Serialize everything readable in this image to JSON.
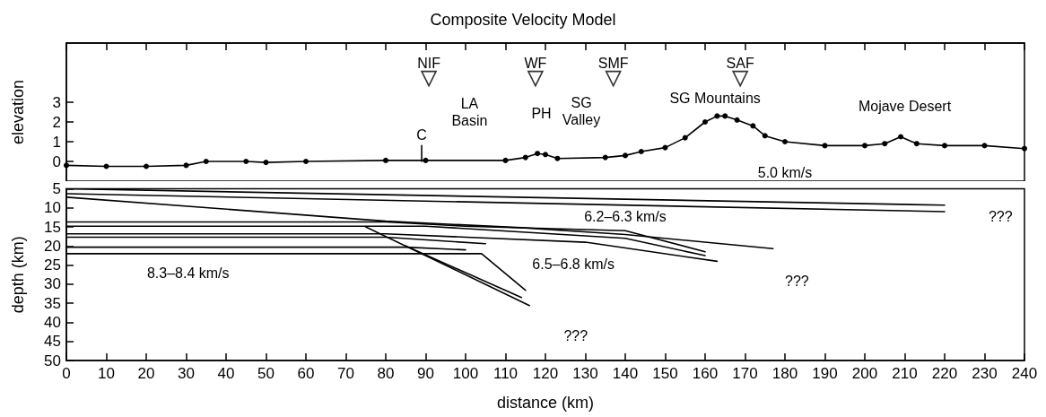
{
  "chart_data": [
    {
      "type": "line",
      "title": "Composite Velocity Model",
      "ylabel": "elevation",
      "xlim": [
        0,
        240
      ],
      "xticks": [
        0,
        10,
        20,
        30,
        40,
        50,
        60,
        70,
        80,
        90,
        100,
        110,
        120,
        130,
        140,
        150,
        160,
        170,
        180,
        190,
        200,
        210,
        220,
        230,
        240
      ],
      "ylim": [
        -1,
        6
      ],
      "yticks": [
        0,
        1,
        2,
        3
      ],
      "tick_labels": "y",
      "marker": "circle",
      "series": [
        {
          "color": "#000000",
          "x": [
            0,
            10,
            20,
            30,
            35,
            45,
            50,
            60,
            80,
            90,
            110,
            115,
            118,
            120,
            123,
            135,
            140,
            144,
            150,
            155,
            160,
            163,
            165,
            168,
            172,
            175,
            180,
            190,
            200,
            205,
            209,
            213,
            220,
            230,
            240
          ],
          "values": [
            -0.2,
            -0.25,
            -0.25,
            -0.2,
            0,
            0,
            -0.05,
            0,
            0.05,
            0.05,
            0.05,
            0.2,
            0.4,
            0.35,
            0.15,
            0.2,
            0.3,
            0.5,
            0.7,
            1.2,
            2.0,
            2.3,
            2.3,
            2.1,
            1.8,
            1.3,
            1.0,
            0.8,
            0.8,
            0.9,
            1.25,
            0.9,
            0.8,
            0.8,
            0.65
          ]
        },
        {
          "color": "#000000",
          "marker": "none",
          "x": [
            89,
            89
          ],
          "values": [
            0,
            0.8
          ]
        },
        {
          "type": "scatter",
          "color": "#000000",
          "marker": "triangle",
          "x": [
            90.8,
            117.5,
            137,
            168.8
          ],
          "values": [
            4.2,
            4.2,
            4.2,
            4.2
          ]
        }
      ],
      "annotations": [
        "NIF",
        "WF",
        "SMF",
        "SAF",
        "C",
        "LA\nBasin",
        "PH",
        "SG\nValley",
        "SG Mountains",
        "Mojave Desert",
        "5.0 km/s"
      ]
    },
    {
      "type": "line",
      "xlabel": "distance (km)",
      "ylabel": "depth (km)",
      "xlim": [
        0,
        240
      ],
      "xticks": [
        0,
        10,
        20,
        30,
        40,
        50,
        60,
        70,
        80,
        90,
        100,
        110,
        120,
        130,
        140,
        150,
        160,
        170,
        180,
        190,
        200,
        210,
        220,
        230,
        240
      ],
      "ylim": [
        50,
        5
      ],
      "yticks": [
        5,
        10,
        15,
        20,
        25,
        30,
        35,
        40,
        45,
        50
      ],
      "marker": "none",
      "series": [
        {
          "color": "#000000",
          "x": [
            0,
            220
          ],
          "values": [
            5.0,
            9.3
          ]
        },
        {
          "color": "#000000",
          "x": [
            0,
            220
          ],
          "values": [
            6.3,
            11.0
          ]
        },
        {
          "color": "#000000",
          "x": [
            0,
            80,
            114,
            140,
            177
          ],
          "values": [
            7.2,
            13.5,
            15.2,
            17,
            20.7
          ]
        },
        {
          "color": "#000000",
          "x": [
            0,
            80,
            100,
            140,
            160
          ],
          "values": [
            13.7,
            13.7,
            14.8,
            16,
            21.5
          ]
        },
        {
          "color": "#000000",
          "x": [
            0,
            90,
            140,
            160
          ],
          "values": [
            14.8,
            14.8,
            18,
            22.5
          ]
        },
        {
          "color": "#000000",
          "x": [
            0,
            80,
            130,
            163
          ],
          "values": [
            16.8,
            16.8,
            19,
            24
          ]
        },
        {
          "color": "#000000",
          "x": [
            0,
            80,
            105
          ],
          "values": [
            17.7,
            17.7,
            19.4
          ]
        },
        {
          "color": "#000000",
          "x": [
            0,
            85,
            100
          ],
          "values": [
            20.3,
            20.3,
            21
          ]
        },
        {
          "color": "#000000",
          "x": [
            0,
            104,
            115
          ],
          "values": [
            22,
            22,
            31.6
          ]
        },
        {
          "color": "#000000",
          "x": [
            75,
            116
          ],
          "values": [
            15,
            35.6
          ]
        },
        {
          "color": "#000000",
          "x": [
            85,
            114
          ],
          "values": [
            20,
            33.5
          ]
        }
      ],
      "annotations": [
        "6.2–6.3 km/s",
        "6.5–6.8 km/s",
        "8.3–8.4 km/s",
        "???",
        "???",
        "???"
      ]
    }
  ]
}
